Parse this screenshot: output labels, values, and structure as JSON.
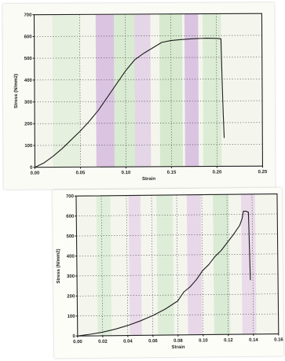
{
  "chart_data": [
    {
      "type": "line",
      "title": "",
      "xlabel": "Strain",
      "ylabel": "Stress (N/mm2)",
      "xlim": [
        0,
        0.25
      ],
      "ylim": [
        0,
        700
      ],
      "x_ticks": [
        "0.00",
        "0.05",
        "0.10",
        "0.15",
        "0.20",
        "0.25"
      ],
      "y_ticks": [
        "0",
        "100",
        "200",
        "300",
        "400",
        "500",
        "600",
        "700"
      ],
      "grid": true,
      "colors": {
        "line": "#1d1d1d",
        "band_magenta": "#c79ad8",
        "band_green": "#b9deb0"
      },
      "series": [
        {
          "x": [
            0.0,
            0.005,
            0.01,
            0.02,
            0.03,
            0.04,
            0.05,
            0.06,
            0.07,
            0.08,
            0.09,
            0.1,
            0.11,
            0.12,
            0.13,
            0.14,
            0.15,
            0.16,
            0.17,
            0.18,
            0.19,
            0.2,
            0.205,
            0.206,
            0.207,
            0.208
          ],
          "y": [
            0,
            10,
            20,
            50,
            85,
            125,
            165,
            210,
            260,
            320,
            380,
            440,
            490,
            520,
            545,
            570,
            578,
            582,
            585,
            587,
            588,
            587,
            585,
            400,
            250,
            130
          ]
        }
      ]
    },
    {
      "type": "line",
      "title": "",
      "xlabel": "Strain",
      "ylabel": "Stress (N/mm2)",
      "xlim": [
        0,
        0.16
      ],
      "ylim": [
        0,
        700
      ],
      "x_ticks": [
        "0.00",
        "0.02",
        "0.04",
        "0.06",
        "0.08",
        "0.10",
        "0.12",
        "0.14",
        "0.16"
      ],
      "y_ticks": [
        "0",
        "100",
        "200",
        "300",
        "400",
        "500",
        "600",
        "700"
      ],
      "grid": true,
      "colors": {
        "line": "#1d1d1d",
        "band_magenta": "#d7a8e2",
        "band_green": "#b4ddb0"
      },
      "series": [
        {
          "x": [
            0.0,
            0.01,
            0.02,
            0.03,
            0.04,
            0.05,
            0.06,
            0.07,
            0.08,
            0.085,
            0.09,
            0.095,
            0.1,
            0.105,
            0.11,
            0.115,
            0.12,
            0.125,
            0.13,
            0.132,
            0.133,
            0.135,
            0.137,
            0.138
          ],
          "y": [
            0,
            8,
            18,
            32,
            50,
            72,
            98,
            130,
            170,
            215,
            240,
            275,
            320,
            350,
            390,
            420,
            460,
            500,
            545,
            580,
            615,
            615,
            610,
            270
          ]
        }
      ]
    }
  ]
}
